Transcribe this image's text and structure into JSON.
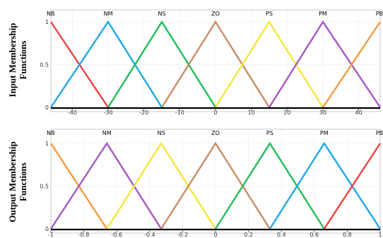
{
  "chart_data": [
    {
      "type": "line",
      "ylabel": "Input Membership Functions",
      "xlim": [
        -46,
        46
      ],
      "ylim": [
        0,
        1
      ],
      "xticks": [
        -40,
        -30,
        -20,
        -10,
        0,
        10,
        20,
        30,
        40
      ],
      "yticks": [
        0,
        0.5,
        1
      ],
      "series": [
        {
          "name": "NB",
          "x": [
            -46,
            -30
          ],
          "y": [
            1,
            0
          ],
          "color": "#f04040"
        },
        {
          "name": "NM",
          "x": [
            -46,
            -30,
            -15
          ],
          "y": [
            0,
            1,
            0
          ],
          "color": "#1ea8e8"
        },
        {
          "name": "NS",
          "x": [
            -30,
            -15,
            0
          ],
          "y": [
            0,
            1,
            0
          ],
          "color": "#1fbf5a"
        },
        {
          "name": "ZO",
          "x": [
            -15,
            0,
            15
          ],
          "y": [
            0,
            1,
            0
          ],
          "color": "#c98d65"
        },
        {
          "name": "PS",
          "x": [
            0,
            15,
            30
          ],
          "y": [
            0,
            1,
            0
          ],
          "color": "#f5e63a"
        },
        {
          "name": "PM",
          "x": [
            15,
            30,
            46
          ],
          "y": [
            0,
            1,
            0
          ],
          "color": "#a758c0"
        },
        {
          "name": "PB",
          "x": [
            30,
            46
          ],
          "y": [
            0,
            1
          ],
          "color": "#f59a42"
        }
      ]
    },
    {
      "type": "line",
      "ylabel": "Output Membership Functions",
      "xlim": [
        -1,
        1
      ],
      "ylim": [
        0,
        1
      ],
      "xticks": [
        -1,
        -0.8,
        -0.6,
        -0.4,
        -0.2,
        0,
        0.2,
        0.4,
        0.6,
        0.8,
        1
      ],
      "yticks": [
        0,
        0.5,
        1
      ],
      "series": [
        {
          "name": "NB",
          "x": [
            -1,
            -0.66
          ],
          "y": [
            1,
            0
          ],
          "color": "#f59a42"
        },
        {
          "name": "NM",
          "x": [
            -1,
            -0.66,
            -0.33
          ],
          "y": [
            0,
            1,
            0
          ],
          "color": "#a758c0"
        },
        {
          "name": "NS",
          "x": [
            -0.66,
            -0.33,
            0
          ],
          "y": [
            0,
            1,
            0
          ],
          "color": "#f5e63a"
        },
        {
          "name": "ZO",
          "x": [
            -0.33,
            0,
            0.33
          ],
          "y": [
            0,
            1,
            0
          ],
          "color": "#c98d65"
        },
        {
          "name": "PS",
          "x": [
            0,
            0.33,
            0.66
          ],
          "y": [
            0,
            1,
            0
          ],
          "color": "#1fbf5a"
        },
        {
          "name": "PM",
          "x": [
            0.33,
            0.66,
            1
          ],
          "y": [
            0,
            1,
            0
          ],
          "color": "#1ea8e8"
        },
        {
          "name": "PB",
          "x": [
            0.66,
            1
          ],
          "y": [
            0,
            1
          ],
          "color": "#f04040"
        }
      ]
    }
  ]
}
